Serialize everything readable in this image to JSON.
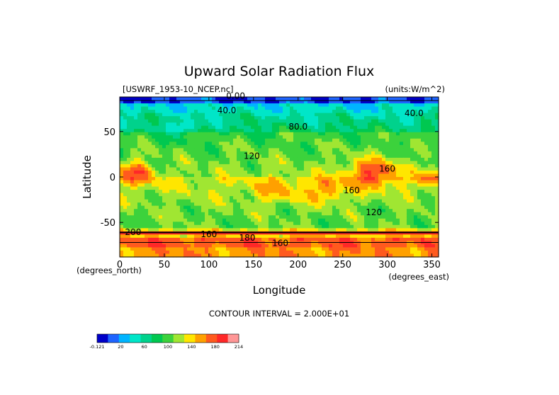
{
  "chart_data": {
    "type": "heatmap",
    "title": "Upward Solar Radiation Flux",
    "source_label": "[USWRF_1953-10_NCEP.nc]",
    "units_label": "(units:W/m^2)",
    "xlabel": "Longitude",
    "ylabel": "Latitude",
    "x_unit_label": "(degrees_east)",
    "y_unit_label": "(degrees_north)",
    "xlim": [
      0,
      357.5
    ],
    "ylim": [
      -88,
      88
    ],
    "x_ticks": [
      0,
      50,
      100,
      150,
      200,
      250,
      300,
      350
    ],
    "y_ticks": [
      50,
      0,
      -50
    ],
    "contour_interval_text": "CONTOUR INTERVAL = 2.000E+01",
    "contour_labels": [
      "0.00",
      "40.0",
      "40.0",
      "80.0",
      "120",
      "160",
      "160",
      "120",
      "200",
      "160",
      "180",
      "160"
    ],
    "grid": false,
    "legend": "bottom colorbar",
    "colorbar": {
      "levels": [
        -0.121,
        20,
        40,
        60,
        80,
        100,
        120,
        140,
        160,
        180,
        200,
        214
      ],
      "tick_labels": [
        "-0.121",
        "20",
        "60",
        "100",
        "140",
        "180",
        "214"
      ],
      "colors": [
        "#0000c8",
        "#1e64ff",
        "#00b4ff",
        "#00e6c8",
        "#00d28c",
        "#00c850",
        "#3cd23c",
        "#a0e632",
        "#ffe600",
        "#ffa000",
        "#ff5a1e",
        "#ff2828",
        "#ff9696"
      ]
    }
  }
}
